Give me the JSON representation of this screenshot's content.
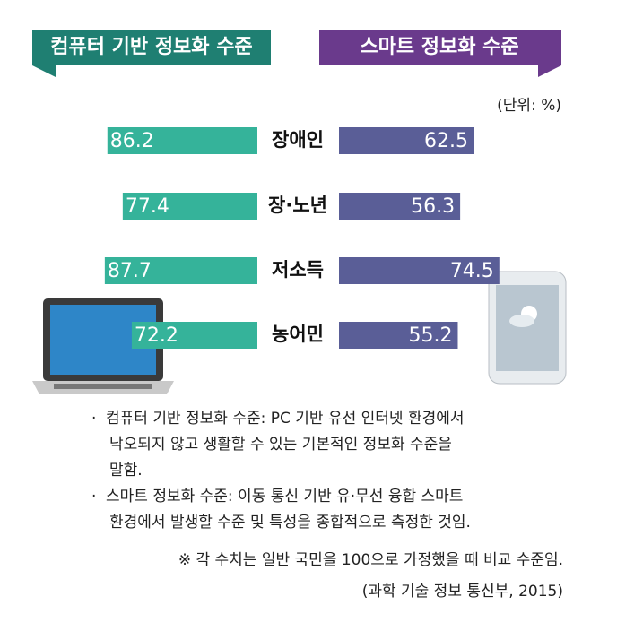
{
  "chart_data": {
    "type": "butterfly",
    "unit": "(단위: %)",
    "categories": [
      "장애인",
      "장·노년",
      "저소득",
      "농어민"
    ],
    "series": [
      {
        "name": "컴퓨터 기반 정보화 수준",
        "color": "#35b39a",
        "header_color": "#1f7f72",
        "values": [
          86.2,
          77.4,
          87.7,
          72.2
        ]
      },
      {
        "name": "스마트 정보화 수준",
        "color": "#5a5e97",
        "header_color": "#6a3a8c",
        "values": [
          62.5,
          56.3,
          74.5,
          55.2
        ]
      }
    ],
    "notes": [
      "컴퓨터 기반 정보화 수준: PC 기반 유선  인터넷  환경에서",
      "낙오되지 않고 생활할  수 있는  기본적인 정보화 수준을",
      "말함.",
      "스마트 정보화 수준: 이동 통신 기반 유·무선 융합  스마트",
      "환경에서 발생할 수준  및 특성을 종합적으로 측정한 것임."
    ],
    "footnote": "※ 각 수치는 일반 국민을 100으로 가정했을 때 비교 수준임.",
    "source": "(과학 기술 정보 통신부, 2015)"
  }
}
